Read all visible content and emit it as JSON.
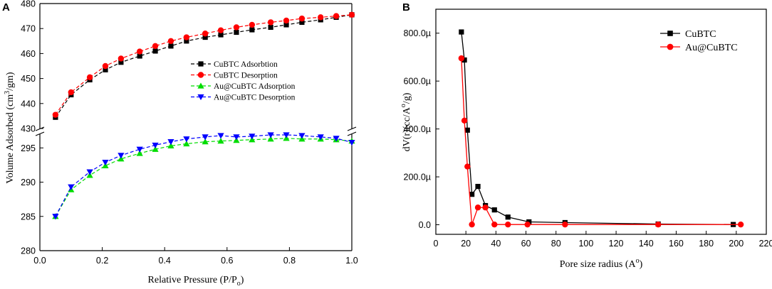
{
  "chart_data": [
    {
      "panel": "A",
      "type": "line",
      "title": "",
      "xlabel": "Relative Pressure (P/P",
      "xlabel_sub": "o",
      "xlabel_end": ")",
      "ylabel": "Volume Adsorbed (cm",
      "ylabel_sup": "3",
      "ylabel_end": "/gm)",
      "xlim": [
        0.0,
        1.0
      ],
      "x_ticks": [
        "0.0",
        "0.2",
        "0.4",
        "0.6",
        "0.8",
        "1.0"
      ],
      "y_break": true,
      "upper_ylim": [
        430,
        480
      ],
      "upper_y_ticks": [
        "430",
        "440",
        "450",
        "460",
        "470",
        "480"
      ],
      "lower_ylim": [
        280,
        297
      ],
      "lower_y_ticks": [
        "280",
        "285",
        "290",
        "295"
      ],
      "legend_position": "center-right",
      "series": [
        {
          "name": "CuBTC Adsorbtion",
          "color": "#000000",
          "marker": "square",
          "segment": "upper",
          "x": [
            0.05,
            0.1,
            0.16,
            0.21,
            0.26,
            0.32,
            0.37,
            0.42,
            0.47,
            0.53,
            0.58,
            0.63,
            0.68,
            0.74,
            0.79,
            0.84,
            0.9,
            0.95,
            1.0
          ],
          "y": [
            434.5,
            443.5,
            449.5,
            453.5,
            456.5,
            459.0,
            461.0,
            463.0,
            465.0,
            466.5,
            467.5,
            468.5,
            469.5,
            470.5,
            471.5,
            472.5,
            473.5,
            474.5,
            475.5
          ]
        },
        {
          "name": "CuBTC Desorption",
          "color": "#ff0000",
          "marker": "circle",
          "segment": "upper",
          "x": [
            0.05,
            0.1,
            0.16,
            0.21,
            0.26,
            0.32,
            0.37,
            0.42,
            0.47,
            0.53,
            0.58,
            0.63,
            0.68,
            0.74,
            0.79,
            0.84,
            0.9,
            0.95,
            1.0
          ],
          "y": [
            435.5,
            444.5,
            450.5,
            455.0,
            458.0,
            460.8,
            463.0,
            465.0,
            466.5,
            468.0,
            469.3,
            470.5,
            471.5,
            472.5,
            473.2,
            474.0,
            474.5,
            475.0,
            475.5
          ]
        },
        {
          "name": "Au@CuBTC Adsorption",
          "color": "#00dd00",
          "marker": "triangle-up",
          "segment": "lower",
          "x": [
            0.05,
            0.1,
            0.16,
            0.21,
            0.26,
            0.32,
            0.37,
            0.42,
            0.47,
            0.53,
            0.58,
            0.63,
            0.68,
            0.74,
            0.79,
            0.84,
            0.9,
            0.95,
            1.0
          ],
          "y": [
            285.0,
            288.9,
            291.0,
            292.4,
            293.4,
            294.2,
            294.8,
            295.3,
            295.6,
            295.9,
            296.0,
            296.1,
            296.2,
            296.3,
            296.4,
            296.3,
            296.3,
            296.2,
            296.0
          ]
        },
        {
          "name": "Au@CuBTC Desorption",
          "color": "#0000ff",
          "marker": "triangle-down",
          "segment": "lower",
          "x": [
            0.05,
            0.1,
            0.16,
            0.21,
            0.26,
            0.32,
            0.37,
            0.42,
            0.47,
            0.53,
            0.58,
            0.63,
            0.68,
            0.74,
            0.79,
            0.84,
            0.9,
            0.95,
            1.0
          ],
          "y": [
            285.0,
            289.3,
            291.5,
            292.9,
            293.9,
            294.8,
            295.4,
            295.9,
            296.3,
            296.6,
            296.8,
            296.6,
            296.7,
            296.9,
            296.9,
            296.8,
            296.6,
            296.4,
            295.8
          ]
        }
      ]
    },
    {
      "panel": "B",
      "type": "line",
      "title": "",
      "xlabel": "Pore size radius (A",
      "xlabel_sup": "o",
      "xlabel_end": ")",
      "ylabel": "dV(r)(cc/A",
      "ylabel_sup": "o",
      "ylabel_end": "/g)",
      "xlim": [
        0,
        220
      ],
      "x_tick_values": [
        0,
        20,
        40,
        60,
        80,
        100,
        120,
        140,
        160,
        180,
        200,
        220
      ],
      "x_ticks": [
        "0",
        "20",
        "40",
        "60",
        "80",
        "100",
        "120",
        "140",
        "160",
        "180",
        "200",
        "220"
      ],
      "ylim": [
        -4e-05,
        0.0009
      ],
      "y_tick_values": [
        0,
        0.0002,
        0.0004,
        0.0006,
        0.0008
      ],
      "y_ticks": [
        "0.0",
        "200.0µ",
        "400.0µ",
        "600.0µ",
        "800.0µ"
      ],
      "legend_position": "top-right",
      "series": [
        {
          "name": "CuBTC",
          "color": "#000000",
          "marker": "square",
          "x": [
            17,
            19,
            21,
            24,
            28,
            33,
            39,
            48,
            62,
            86,
            148,
            198
          ],
          "y": [
            0.000805,
            0.000688,
            0.000395,
            0.000127,
            0.00016,
            8e-05,
            6.2e-05,
            3.2e-05,
            1.2e-05,
            9e-06,
            3e-06,
            1e-06
          ]
        },
        {
          "name": "Au@CuBTC",
          "color": "#ff0000",
          "marker": "circle",
          "x": [
            17,
            19,
            21,
            24,
            28,
            33,
            39,
            48,
            61,
            86,
            148,
            203
          ],
          "y": [
            0.000695,
            0.000435,
            0.000243,
            1e-06,
            7.2e-05,
            7.2e-05,
            1e-06,
            1e-06,
            1e-06,
            1e-06,
            1e-06,
            1e-06
          ]
        }
      ]
    }
  ]
}
